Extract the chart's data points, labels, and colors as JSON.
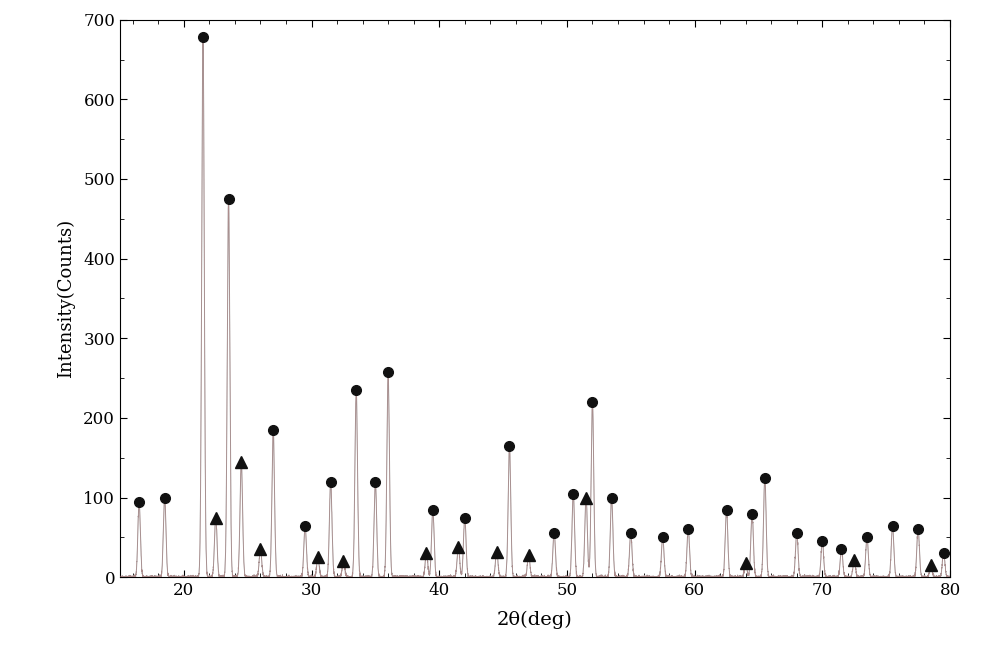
{
  "title": "",
  "xlabel": "2θ(deg)",
  "ylabel": "Intensity(Counts)",
  "xlim": [
    15,
    80
  ],
  "ylim": [
    0,
    700
  ],
  "yticks": [
    0,
    100,
    200,
    300,
    400,
    500,
    600,
    700
  ],
  "xticks": [
    20,
    30,
    40,
    50,
    60,
    70,
    80
  ],
  "circle_peaks": [
    [
      16.5,
      95
    ],
    [
      18.5,
      100
    ],
    [
      21.5,
      678
    ],
    [
      23.5,
      475
    ],
    [
      27.0,
      185
    ],
    [
      29.5,
      65
    ],
    [
      31.5,
      120
    ],
    [
      33.5,
      235
    ],
    [
      35.0,
      120
    ],
    [
      36.0,
      258
    ],
    [
      39.5,
      85
    ],
    [
      42.0,
      75
    ],
    [
      45.5,
      165
    ],
    [
      49.0,
      55
    ],
    [
      50.5,
      105
    ],
    [
      52.0,
      220
    ],
    [
      53.5,
      100
    ],
    [
      55.0,
      55
    ],
    [
      57.5,
      50
    ],
    [
      59.5,
      60
    ],
    [
      62.5,
      85
    ],
    [
      64.5,
      80
    ],
    [
      65.5,
      125
    ],
    [
      68.0,
      55
    ],
    [
      70.0,
      45
    ],
    [
      71.5,
      35
    ],
    [
      73.5,
      50
    ],
    [
      75.5,
      65
    ],
    [
      77.5,
      60
    ],
    [
      79.5,
      30
    ]
  ],
  "triangle_peaks": [
    [
      22.5,
      75
    ],
    [
      24.5,
      145
    ],
    [
      26.0,
      35
    ],
    [
      30.5,
      25
    ],
    [
      32.5,
      20
    ],
    [
      39.0,
      30
    ],
    [
      41.5,
      38
    ],
    [
      44.5,
      32
    ],
    [
      47.0,
      28
    ],
    [
      51.5,
      100
    ],
    [
      64.0,
      18
    ],
    [
      72.5,
      22
    ],
    [
      78.5,
      15
    ]
  ],
  "line_color_gray": "#9a9a9a",
  "line_color_pink": "#c08080",
  "circle_color": "#111111",
  "triangle_color": "#111111",
  "background_color": "#ffffff",
  "figsize": [
    10.0,
    6.56
  ],
  "dpi": 100
}
